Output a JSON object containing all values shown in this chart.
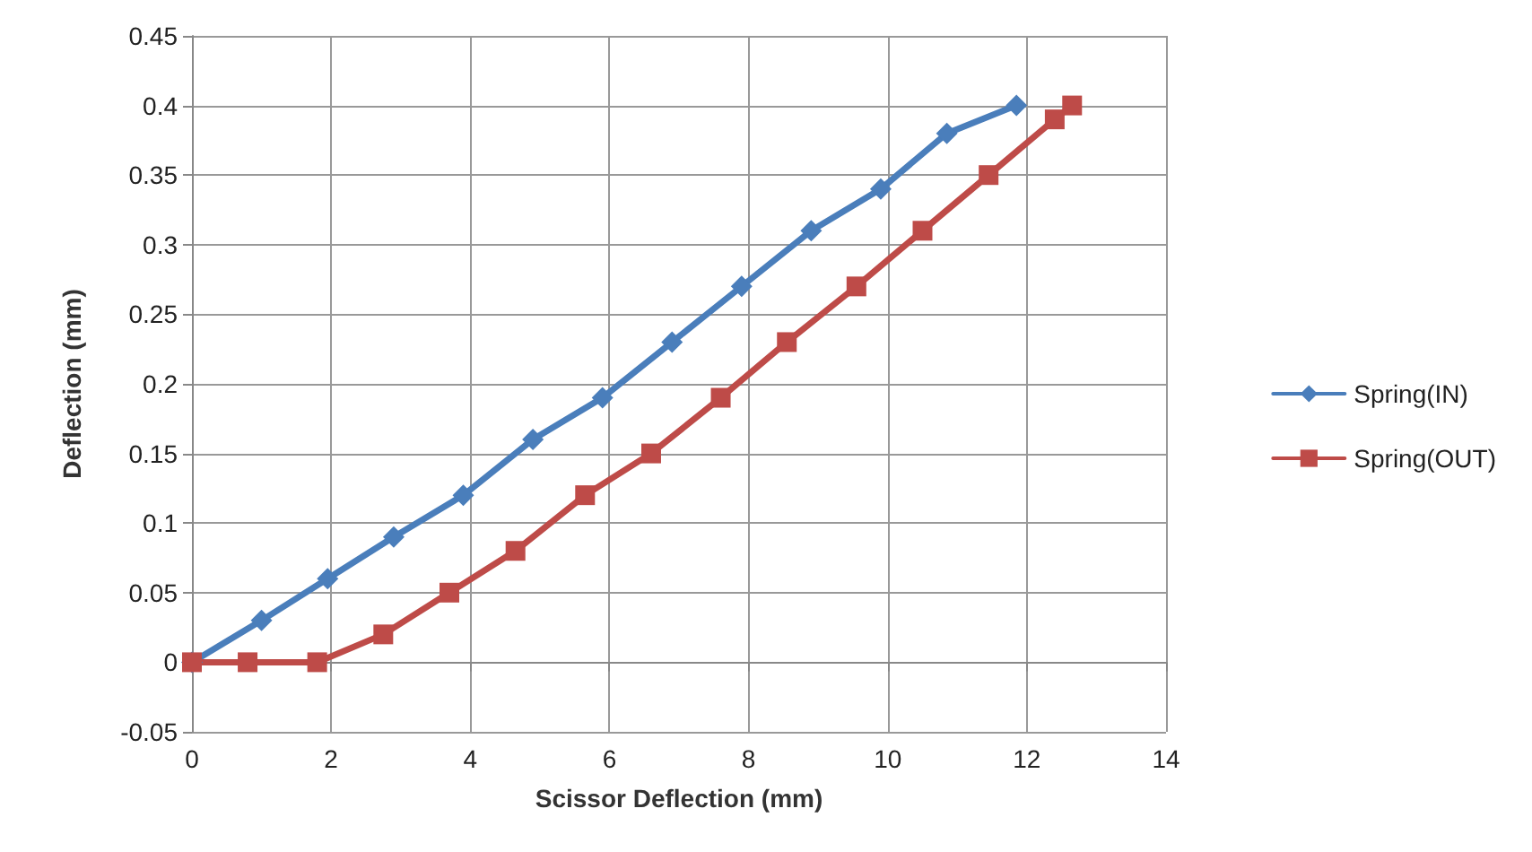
{
  "chart_data": {
    "type": "line",
    "xlabel": "Scissor Deflection (mm)",
    "ylabel": "Deflection (mm)",
    "xlim": [
      0,
      14
    ],
    "xticks": [
      0,
      2,
      4,
      6,
      8,
      10,
      12,
      14
    ],
    "ylim": [
      -0.05,
      0.45
    ],
    "yticks": [
      -0.05,
      0,
      0.05,
      0.1,
      0.15,
      0.2,
      0.25,
      0.3,
      0.35,
      0.4,
      0.45
    ],
    "grid": true,
    "legend": "right",
    "series": [
      {
        "name": "Spring(IN)",
        "color": "#4a7ebb",
        "marker": "diamond",
        "x": [
          0,
          1,
          1.95,
          2.9,
          3.9,
          4.9,
          5.9,
          6.9,
          7.9,
          8.9,
          9.9,
          10.85,
          11.85
        ],
        "values": [
          0,
          0.03,
          0.06,
          0.09,
          0.12,
          0.16,
          0.19,
          0.23,
          0.27,
          0.31,
          0.34,
          0.38,
          0.4
        ]
      },
      {
        "name": "Spring(OUT)",
        "color": "#be4b48",
        "marker": "square",
        "x": [
          0,
          0.8,
          1.8,
          2.75,
          3.7,
          4.65,
          5.65,
          6.6,
          7.6,
          8.55,
          9.55,
          10.5,
          11.45,
          12.4,
          12.65
        ],
        "values": [
          0,
          0,
          0,
          0.02,
          0.05,
          0.08,
          0.12,
          0.15,
          0.19,
          0.23,
          0.27,
          0.31,
          0.35,
          0.39,
          0.4
        ]
      }
    ]
  }
}
